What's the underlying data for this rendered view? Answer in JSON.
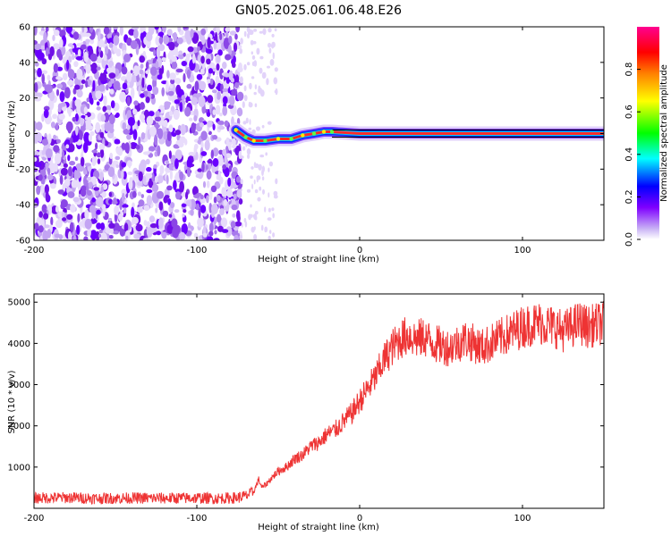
{
  "title": "GN05.2025.061.06.48.E26",
  "chart_data": [
    {
      "type": "heatmap",
      "xlabel": "Height of straight line (km)",
      "ylabel": "Frequency (Hz)",
      "xlim": [
        -200,
        150
      ],
      "ylim": [
        -60,
        60
      ],
      "xticks": [
        "-200",
        "-100",
        "0",
        "100"
      ],
      "xtick_values": [
        -200,
        -100,
        0,
        100
      ],
      "yticks": [
        "60",
        "40",
        "20",
        "0",
        "-20",
        "-40",
        "-60"
      ],
      "ytick_values": [
        60,
        40,
        20,
        0,
        -20,
        -40,
        -60
      ],
      "noise_region_x": [
        -200,
        -73
      ],
      "signal_track": [
        {
          "x": -76,
          "y": 2
        },
        {
          "x": -70,
          "y": -2
        },
        {
          "x": -65,
          "y": -4
        },
        {
          "x": -58,
          "y": -4
        },
        {
          "x": -50,
          "y": -3
        },
        {
          "x": -42,
          "y": -3
        },
        {
          "x": -35,
          "y": -1
        },
        {
          "x": -28,
          "y": 0
        },
        {
          "x": -22,
          "y": 1
        },
        {
          "x": -17,
          "y": 1
        },
        {
          "x": 0,
          "y": 0
        },
        {
          "x": 150,
          "y": 0
        }
      ],
      "colorbar": {
        "label": "Normalized spectral amplitude",
        "ticks": [
          "0.0",
          "0.2",
          "0.4",
          "0.6",
          "0.8"
        ],
        "tick_values": [
          0.0,
          0.2,
          0.4,
          0.6,
          0.8
        ],
        "range": [
          0,
          1
        ],
        "colors": [
          "#ffffff",
          "#c9b3f5",
          "#7f00ff",
          "#0000ff",
          "#00ffff",
          "#00ff00",
          "#ffff00",
          "#ff8000",
          "#ff0000",
          "#ff0090"
        ]
      }
    },
    {
      "type": "line",
      "xlabel": "Height of straight line (km)",
      "ylabel": "SNR (10 * v/v)",
      "xlim": [
        -200,
        150
      ],
      "ylim": [
        0,
        5200
      ],
      "xticks": [
        "-200",
        "-100",
        "0",
        "100"
      ],
      "xtick_values": [
        -200,
        -100,
        0,
        100
      ],
      "yticks": [
        "5000",
        "4000",
        "3000",
        "2000",
        "1000"
      ],
      "ytick_values": [
        5000,
        4000,
        3000,
        2000,
        1000
      ],
      "line_color": "#ee3333",
      "series": [
        {
          "x": [
            -200,
            -180,
            -160,
            -140,
            -120,
            -100,
            -90,
            -80,
            -75,
            -70,
            -65,
            -62,
            -60,
            -57,
            -55,
            -50,
            -45,
            -40,
            -35,
            -30,
            -25,
            -20,
            -15,
            -10,
            -5,
            0,
            5,
            10,
            15,
            20,
            25,
            30,
            35,
            40,
            45,
            50,
            55,
            60,
            65,
            70,
            75,
            80,
            85,
            90,
            95,
            100,
            105,
            110,
            115,
            120,
            125,
            130,
            135,
            140,
            145,
            150
          ],
          "values": [
            250,
            260,
            240,
            250,
            245,
            250,
            240,
            250,
            260,
            300,
            400,
            700,
            500,
            600,
            700,
            900,
            1000,
            1200,
            1300,
            1500,
            1600,
            1800,
            1900,
            2100,
            2300,
            2600,
            2900,
            3200,
            3600,
            3900,
            4100,
            4200,
            4100,
            4150,
            4000,
            3950,
            3900,
            4000,
            4100,
            4000,
            3900,
            4000,
            4100,
            4200,
            4300,
            4400,
            4450,
            4500,
            4450,
            4400,
            4300,
            4400,
            4500,
            4400,
            4450,
            4500
          ]
        }
      ]
    }
  ]
}
